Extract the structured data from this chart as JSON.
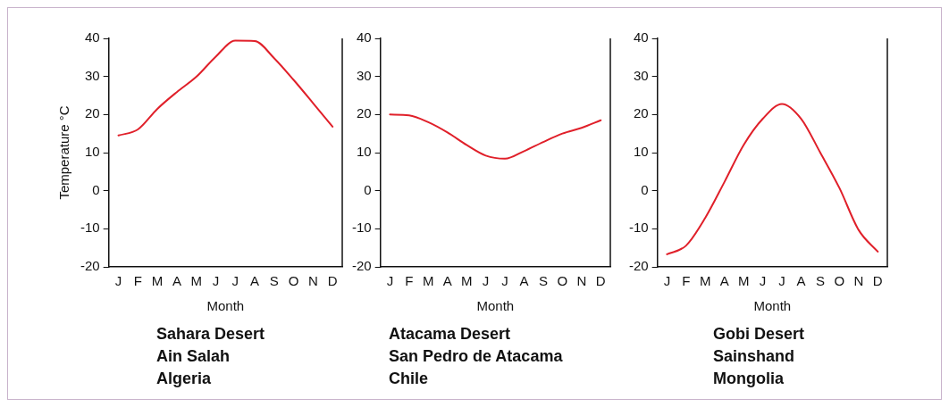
{
  "chart_data": [
    {
      "type": "line",
      "xlabel": "Month",
      "ylabel": "Temperature °C",
      "categories": [
        "J",
        "F",
        "M",
        "A",
        "M",
        "J",
        "J",
        "A",
        "S",
        "O",
        "N",
        "D"
      ],
      "series": [
        {
          "color": "#e0202a",
          "values": [
            14.5,
            16.1,
            21.5,
            25.9,
            29.9,
            35.2,
            39.4,
            39.3,
            34.8,
            29.1,
            23,
            16.8
          ]
        }
      ],
      "ylim": [
        -20,
        40
      ],
      "yticks": [
        -20,
        -10,
        0,
        10,
        20,
        30,
        40
      ],
      "grid": false,
      "legend": false,
      "marker": "none",
      "annotations": [
        "Sahara Desert",
        "Ain Salah",
        "Algeria"
      ]
    },
    {
      "type": "line",
      "xlabel": "Month",
      "categories": [
        "J",
        "F",
        "M",
        "A",
        "M",
        "J",
        "J",
        "A",
        "S",
        "O",
        "N",
        "D"
      ],
      "series": [
        {
          "color": "#e0202a",
          "values": [
            20,
            19.8,
            18,
            15.3,
            12,
            9.2,
            8.4,
            10.4,
            12.8,
            15,
            16.5,
            18.5
          ]
        }
      ],
      "ylim": [
        -20,
        40
      ],
      "yticks": [
        -20,
        -10,
        0,
        10,
        20,
        30,
        40
      ],
      "grid": false,
      "legend": false,
      "marker": "none",
      "annotations": [
        "Atacama Desert",
        "San Pedro de Atacama",
        "Chile"
      ]
    },
    {
      "type": "line",
      "xlabel": "Month",
      "categories": [
        "J",
        "F",
        "M",
        "A",
        "M",
        "J",
        "J",
        "A",
        "S",
        "O",
        "N",
        "D"
      ],
      "series": [
        {
          "color": "#e0202a",
          "values": [
            -16.7,
            -14.4,
            -7.1,
            2.3,
            12,
            18.9,
            22.8,
            18.9,
            10,
            0.7,
            -10.3,
            -16
          ]
        }
      ],
      "ylim": [
        -20,
        40
      ],
      "yticks": [
        -20,
        -10,
        0,
        10,
        20,
        30,
        40
      ],
      "grid": false,
      "legend": false,
      "marker": "none",
      "annotations": [
        "Gobi Desert",
        "Sainshand",
        "Mongolia"
      ]
    }
  ]
}
